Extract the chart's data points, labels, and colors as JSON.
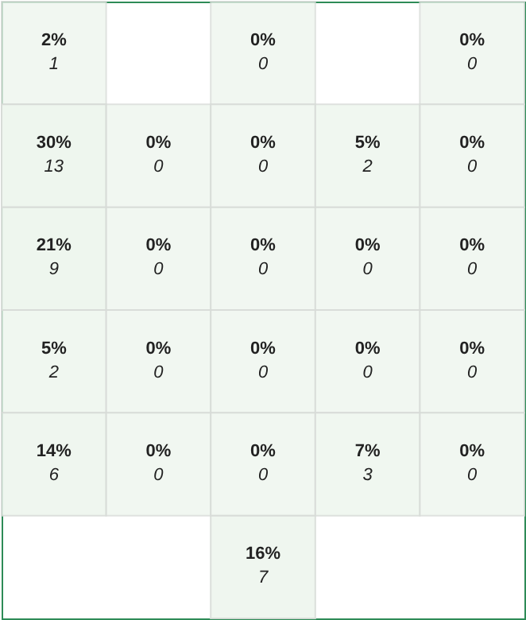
{
  "chart_data": {
    "type": "heatmap",
    "categories": [
      null,
      null,
      null,
      null,
      null
    ],
    "y_categories": [
      null,
      null,
      null,
      null,
      null,
      null
    ],
    "cells": [
      [
        2,
        null,
        0,
        null,
        0
      ],
      [
        30,
        0,
        0,
        5,
        0
      ],
      [
        21,
        0,
        0,
        0,
        0
      ],
      [
        5,
        0,
        0,
        0,
        0
      ],
      [
        14,
        0,
        0,
        7,
        0
      ],
      [
        null,
        null,
        16,
        null,
        null
      ]
    ],
    "cell_labels": [
      [
        "2%",
        null,
        "0%",
        null,
        "0%"
      ],
      [
        "30%",
        "0%",
        "0%",
        "5%",
        "0%"
      ],
      [
        "21%",
        "0%",
        "0%",
        "0%",
        "0%"
      ],
      [
        "5%",
        "0%",
        "0%",
        "0%",
        "0%"
      ],
      [
        "14%",
        "0%",
        "0%",
        "7%",
        "0%"
      ],
      [
        null,
        null,
        "16%",
        null,
        null
      ]
    ],
    "annotations": [
      "1",
      "0",
      "0",
      "13",
      "0",
      "0",
      "2",
      "0",
      "9",
      "0",
      "0",
      "0",
      "0",
      "2",
      "0",
      "0",
      "0",
      "0",
      "6",
      "0",
      "0",
      "3",
      "0",
      "7"
    ],
    "color": "#eef6ee"
  }
}
